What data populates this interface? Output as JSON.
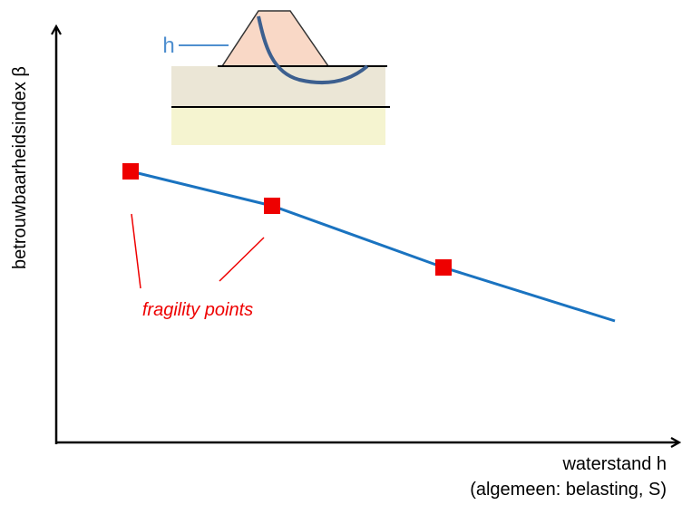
{
  "inset": {
    "label": "h"
  },
  "axes": {
    "y_label": "betrouwbaarheidsindex β",
    "x_label": "waterstand h",
    "x_sublabel": "(algemeen: belasting, S)"
  },
  "annotation": "fragility points"
}
